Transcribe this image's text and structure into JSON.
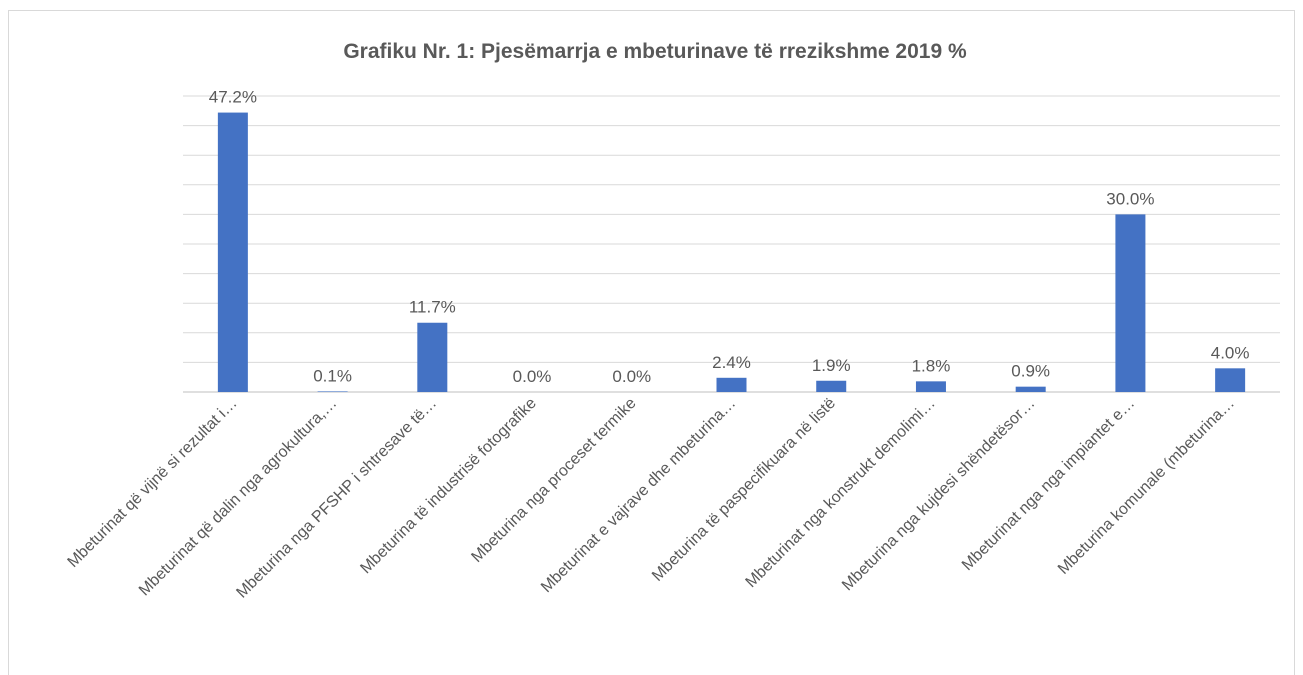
{
  "chart_data": {
    "type": "bar",
    "title": "Grafiku Nr. 1: Pjesëmarrja e mbeturinave të rrezikshme 2019 %",
    "categories": [
      "Mbeturinat që vijnë si rezultat i…",
      "Mbeturinat që dalin nga agrokultura,…",
      "Mbeturina nga PFSHP i shtresave të…",
      "Mbeturina të industrisë fotografike",
      "Mbeturina nga proceset termike",
      "Mbeturinat e vajrave dhe mbeturina…",
      "Mbeturina të paspecifikuara në listë",
      "Mbeturinat nga konstrukt demolimi…",
      "Mbeturina nga kujdesi shëndetësor…",
      "Mbeturinat nga nga impiantet e…",
      "Mbeturina komunale (mbeturina…"
    ],
    "values": [
      47.2,
      0.1,
      11.7,
      0.0,
      0.0,
      2.4,
      1.9,
      1.8,
      0.9,
      30.0,
      4.0
    ],
    "value_labels": [
      "47.2%",
      "0.1%",
      "11.7%",
      "0.0%",
      "0.0%",
      "2.4%",
      "1.9%",
      "1.8%",
      "0.9%",
      "30.0%",
      "4.0%"
    ],
    "color": "#4472c4",
    "ylim": [
      0,
      50
    ],
    "yticks": [
      0,
      5,
      10,
      15,
      20,
      25,
      30,
      35,
      40,
      45,
      50
    ],
    "grid": true
  }
}
